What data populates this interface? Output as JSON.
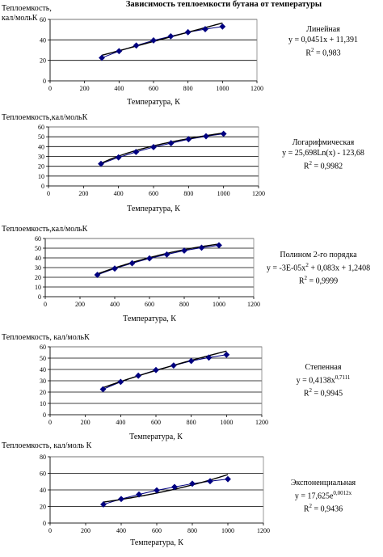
{
  "page": {
    "title": "Зависимость теплоемкости бутана от температуры"
  },
  "series_color": "#000080",
  "trend_color": "#000000",
  "chart_data": [
    {
      "type": "scatter",
      "ylabel": "Теплоемкость,\nкал/мольК",
      "xlabel": "Температура, К",
      "xlim": [
        0,
        1200
      ],
      "ylim": [
        0,
        60
      ],
      "xticks": [
        0,
        200,
        400,
        600,
        800,
        1000,
        1200
      ],
      "yticks": [
        0,
        20,
        40,
        60
      ],
      "grid": "horizontal",
      "x": [
        300,
        400,
        500,
        600,
        700,
        800,
        900,
        1000
      ],
      "y": [
        22.5,
        29,
        34.5,
        39.5,
        43.5,
        47.5,
        50.5,
        53
      ],
      "trend": "linear",
      "equation": {
        "name": "Линейная",
        "formula": "y = 0,0451x + 11,391",
        "r2_label": "R",
        "r2_sup": "2",
        "r2_value": " = 0,983"
      }
    },
    {
      "type": "scatter",
      "ylabel": "Теплоемкость,кал/мольК",
      "xlabel": "Температура, К",
      "xlim": [
        0,
        1200
      ],
      "ylim": [
        0,
        60
      ],
      "xticks": [
        0,
        200,
        400,
        600,
        800,
        1000,
        1200
      ],
      "yticks": [
        0,
        10,
        20,
        30,
        40,
        50,
        60
      ],
      "grid": "horizontal",
      "x": [
        300,
        400,
        500,
        600,
        700,
        800,
        900,
        1000
      ],
      "y": [
        22.5,
        29,
        34.5,
        39.5,
        43.5,
        47.5,
        50.5,
        53
      ],
      "trend": "log",
      "equation": {
        "name": "Логарифмическая",
        "formula": "y = 25,698Ln(x) - 123,68",
        "r2_label": "R",
        "r2_sup": "2",
        "r2_value": " = 0,9982"
      }
    },
    {
      "type": "scatter",
      "ylabel": "Теплоемкость,кал/мольК",
      "xlabel": "Температура, К",
      "xlim": [
        0,
        1200
      ],
      "ylim": [
        0,
        60
      ],
      "xticks": [
        0,
        200,
        400,
        600,
        800,
        1000,
        1200
      ],
      "yticks": [
        0,
        10,
        20,
        30,
        40,
        50,
        60
      ],
      "grid": "horizontal",
      "x": [
        300,
        400,
        500,
        600,
        700,
        800,
        900,
        1000
      ],
      "y": [
        22.5,
        29,
        34.5,
        39.5,
        43.5,
        47.5,
        50.5,
        53
      ],
      "trend": "poly2",
      "equation": {
        "name": "Полином 2-го порядка",
        "formula_a": "y = -3E-05x",
        "formula_sup": "2",
        "formula_b": " + 0,083x + 1,2408",
        "r2_label": "R",
        "r2_sup": "2",
        "r2_value": " = 0,9999"
      }
    },
    {
      "type": "scatter",
      "ylabel": "Теплоемкость, кал/мольК",
      "xlabel": "Температура, К",
      "xlim": [
        0,
        1200
      ],
      "ylim": [
        0,
        60
      ],
      "xticks": [
        0,
        200,
        400,
        600,
        800,
        1000,
        1200
      ],
      "yticks": [
        0,
        10,
        20,
        30,
        40,
        50,
        60
      ],
      "grid": "horizontal",
      "x": [
        300,
        400,
        500,
        600,
        700,
        800,
        900,
        1000
      ],
      "y": [
        22.5,
        29,
        34.5,
        39.5,
        43.5,
        47.5,
        50.5,
        53
      ],
      "trend": "power",
      "equation": {
        "name": "Степенная",
        "formula_a": "y = 0,4138x",
        "formula_sup": "0,7111",
        "r2_label": "R",
        "r2_sup": "2",
        "r2_value": " = 0,9945"
      }
    },
    {
      "type": "scatter",
      "ylabel": "Теплоемкость, кал/моль К",
      "xlabel": "Температура, К",
      "xlim": [
        0,
        1200
      ],
      "ylim": [
        0,
        80
      ],
      "xticks": [
        0,
        200,
        400,
        600,
        800,
        1000,
        1200
      ],
      "yticks": [
        0,
        20,
        40,
        60,
        80
      ],
      "grid": "horizontal",
      "x": [
        300,
        400,
        500,
        600,
        700,
        800,
        900,
        1000
      ],
      "y": [
        22.5,
        29,
        34.5,
        39.5,
        43.5,
        47.5,
        50.5,
        53
      ],
      "trend": "exp",
      "equation": {
        "name": "Экспоненциальная",
        "formula_a": "y = 17,625e",
        "formula_sup": "0,0012x",
        "r2_label": "R",
        "r2_sup": "2",
        "r2_value": " = 0,9436"
      }
    }
  ]
}
